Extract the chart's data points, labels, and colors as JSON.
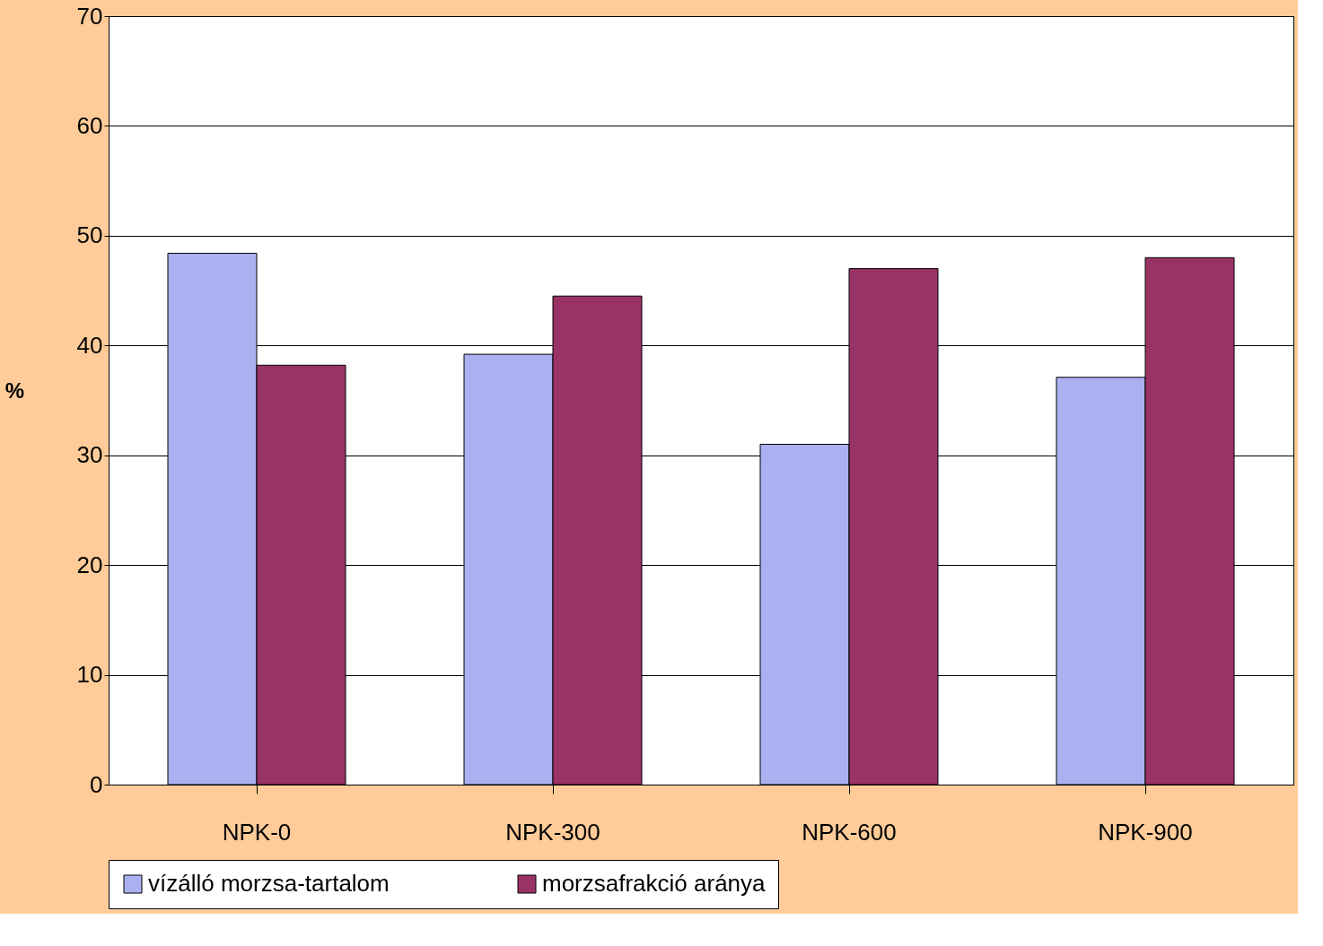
{
  "chart_data": {
    "type": "bar",
    "categories": [
      "NPK-0",
      "NPK-300",
      "NPK-600",
      "NPK-900"
    ],
    "ylabel": "%",
    "series": [
      {
        "name": "vízálló morzsa-tartalom",
        "color": "#aab0f0",
        "values": [
          48.4,
          39.2,
          31.0,
          37.1
        ]
      },
      {
        "name": "morzsafrakció aránya",
        "color": "#993366",
        "values": [
          38.2,
          44.5,
          47.0,
          48.0
        ]
      }
    ],
    "ylim": [
      0,
      70
    ],
    "yticks": [
      0,
      10,
      20,
      30,
      40,
      50,
      60,
      70
    ],
    "grid": "y",
    "legend": "bottom"
  }
}
